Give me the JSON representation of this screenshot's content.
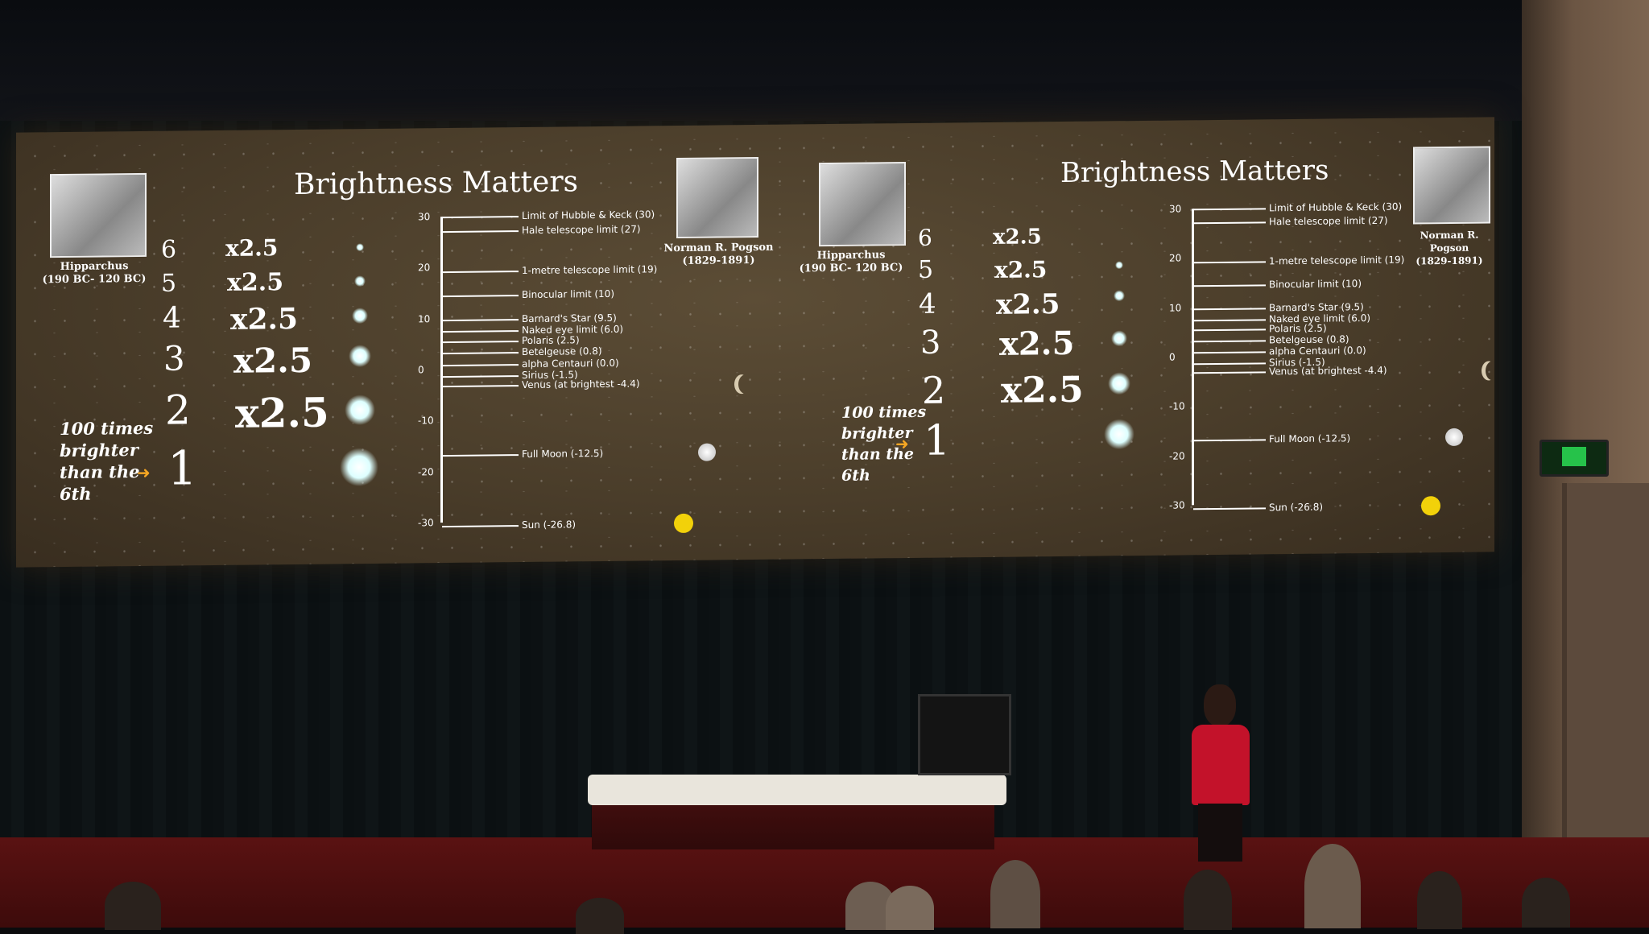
{
  "slide": {
    "title": "Brightness Matters",
    "hipparchus": {
      "name": "Hipparchus",
      "dates": "(190 BC- 120 BC)"
    },
    "pogson": {
      "name": "Norman R. Pogson",
      "dates": "(1829-1891)"
    },
    "magnitudes": [
      "6",
      "5",
      "4",
      "3",
      "2",
      "1"
    ],
    "multiplier": "x2.5",
    "note": [
      "100 times",
      "brighter",
      "than the",
      "6th"
    ],
    "axis_ticks": [
      "30",
      "20",
      "10",
      "0",
      "-10",
      "-20",
      "-30"
    ],
    "objects": [
      {
        "label": "Limit of Hubble & Keck (30)"
      },
      {
        "label": "Hale telescope limit (27)"
      },
      {
        "label": "1-metre telescope limit (19)"
      },
      {
        "label": "Binocular limit (10)"
      },
      {
        "label": "Barnard's Star (9.5)"
      },
      {
        "label": "Naked eye limit (6.0)"
      },
      {
        "label": "Polaris (2.5)"
      },
      {
        "label": "Betelgeuse (0.8)"
      },
      {
        "label": "alpha Centauri (0.0)"
      },
      {
        "label": "Sirius (-1.5)"
      },
      {
        "label": "Venus (at brightest -4.4)"
      },
      {
        "label": "Full Moon (-12.5)"
      },
      {
        "label": "Sun (-26.8)"
      }
    ]
  },
  "colors": {
    "sun": "#f2d10a",
    "arrow": "#f5a623",
    "presenter_top": "#c3122a",
    "exit_sign": "#26c24a"
  }
}
